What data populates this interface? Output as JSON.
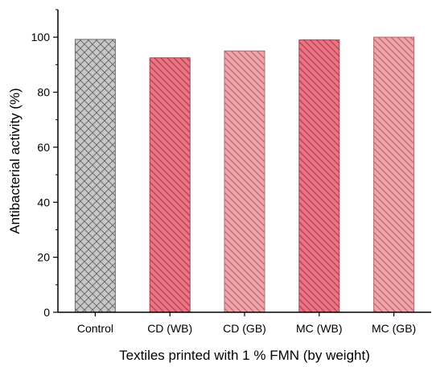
{
  "chart_data": {
    "type": "bar",
    "title": "",
    "xlabel": "Textiles printed with 1 % FMN (by weight)",
    "ylabel": "Antibacterial activity (%)",
    "categories": [
      "Control",
      "CD (WB)",
      "CD (GB)",
      "MC (WB)",
      "MC (GB)"
    ],
    "values": [
      99.2,
      92.5,
      95.0,
      99.0,
      100.0
    ],
    "ylim": [
      0,
      110
    ],
    "yticks": [
      0,
      20,
      40,
      60,
      80,
      100
    ],
    "grid": false,
    "legend": "none",
    "bar_styles": [
      {
        "fill": "#c8c8c8",
        "stroke": "#6e6e6e",
        "pattern": "crosshatch"
      },
      {
        "fill": "#ef7282",
        "stroke": "#a04452",
        "pattern": "diagonal-dense"
      },
      {
        "fill": "#f3a3aa",
        "stroke": "#b06a72",
        "pattern": "diagonal-dense"
      },
      {
        "fill": "#ef7282",
        "stroke": "#a04452",
        "pattern": "diagonal-dense"
      },
      {
        "fill": "#f3a3aa",
        "stroke": "#b06a72",
        "pattern": "diagonal-dense"
      }
    ]
  }
}
